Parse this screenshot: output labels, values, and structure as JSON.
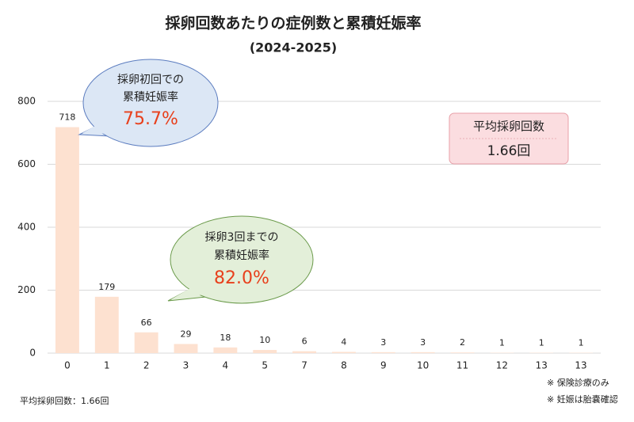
{
  "chart_data": {
    "type": "bar",
    "title": "採卵回数あたりの症例数と累積妊娠率",
    "subtitle": "(2024-2025)",
    "categories": [
      "0",
      "1",
      "2",
      "3",
      "4",
      "5",
      "7",
      "8",
      "9",
      "10",
      "11",
      "12",
      "13",
      "13"
    ],
    "values": [
      718,
      179,
      66,
      29,
      18,
      10,
      6,
      4,
      3,
      3,
      2,
      1,
      1,
      1
    ],
    "color": "#fde1d0",
    "ylim": [
      0,
      800
    ],
    "yticks": [
      0,
      200,
      400,
      600,
      800
    ],
    "grid": true,
    "callouts": [
      {
        "line1": "採卵初回での",
        "line2": "累積妊娠率",
        "rate": "75.7%"
      },
      {
        "line1": "採卵3回までの",
        "line2": "累積妊娠率",
        "rate": "82.0%"
      }
    ],
    "average_box": {
      "label": "平均採卵回数",
      "value": "1.66回"
    },
    "notes": [
      "※ 保険診療のみ",
      "※ 妊娠は胎嚢確認"
    ],
    "footer": "平均採卵回数：1.66回"
  }
}
